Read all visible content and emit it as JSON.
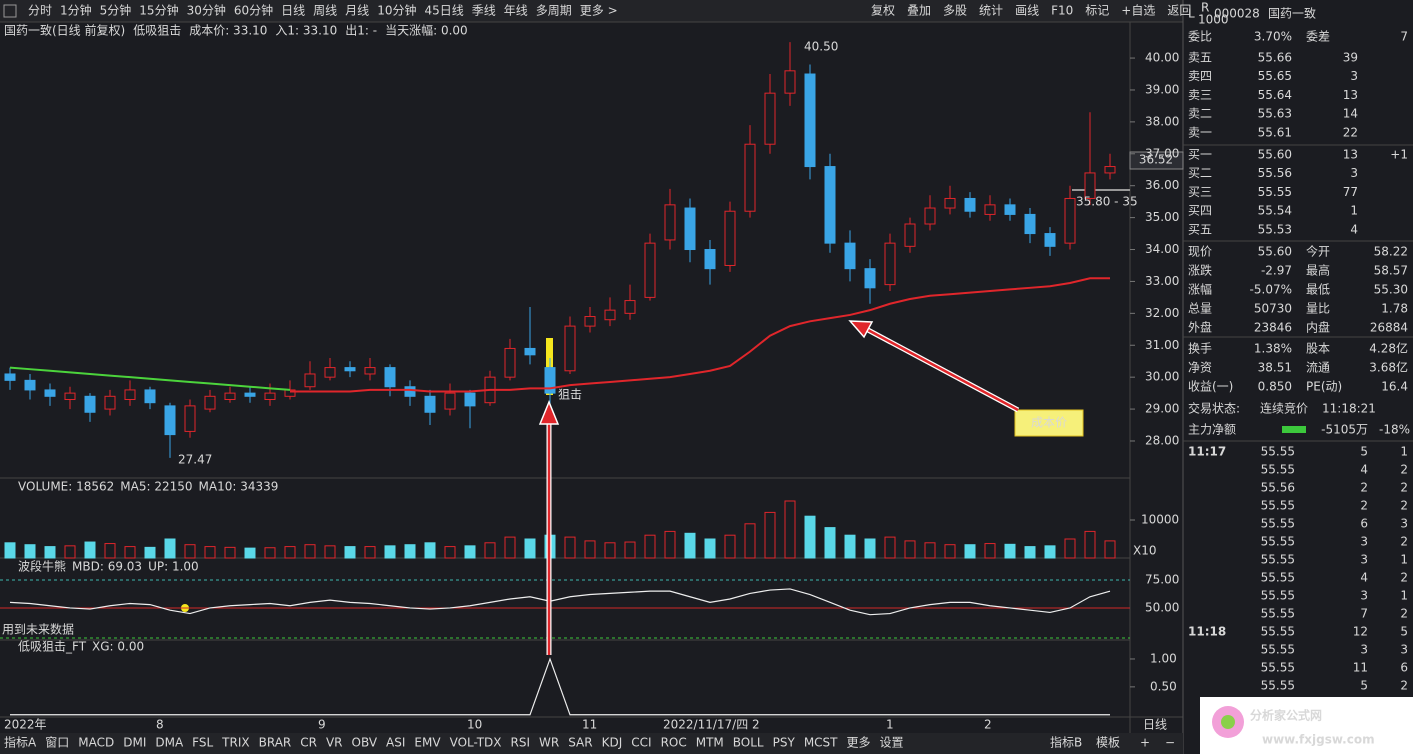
{
  "toolbar": {
    "left": [
      "分时",
      "1分钟",
      "5分钟",
      "15分钟",
      "30分钟",
      "60分钟",
      "日线",
      "周线",
      "月线",
      "10分钟",
      "45日线",
      "季线",
      "年线",
      "多周期",
      "更多 >"
    ],
    "active": "日线",
    "right": [
      "复权",
      "叠加",
      "多股",
      "统计",
      "画线",
      "F10",
      "标记",
      "+自选",
      "返回"
    ]
  },
  "chart_data": {
    "type": "candlestick",
    "title": "国药一致(日线 前复权)",
    "indicator": "低吸狙击",
    "overlay_labels": [
      {
        "text": "成本价: 33.10",
        "color": "#c040c0"
      },
      {
        "text": "入1: 33.10",
        "color": "#e03030"
      },
      {
        "text": "出1: -",
        "color": "#e0d040"
      },
      {
        "text": "当天涨幅: 0.00",
        "color": "#40c040"
      }
    ],
    "up_color": "#e0262b",
    "down_color": "#3aa5e6",
    "cost_color": "#e0262b",
    "trend_color": "#4cd43c",
    "candles": [
      [
        30.1,
        29.9,
        30.3,
        29.6
      ],
      [
        29.9,
        29.6,
        30.1,
        29.3
      ],
      [
        29.6,
        29.4,
        29.8,
        29.1
      ],
      [
        29.3,
        29.5,
        29.7,
        29.0
      ],
      [
        29.4,
        28.9,
        29.5,
        28.6
      ],
      [
        29.0,
        29.4,
        29.6,
        28.8
      ],
      [
        29.3,
        29.6,
        29.9,
        29.1
      ],
      [
        29.6,
        29.2,
        29.7,
        29.0
      ],
      [
        29.1,
        28.2,
        29.2,
        27.47
      ],
      [
        28.3,
        29.1,
        29.3,
        28.1
      ],
      [
        29.0,
        29.4,
        29.6,
        28.9
      ],
      [
        29.3,
        29.5,
        29.7,
        29.2
      ],
      [
        29.5,
        29.4,
        29.7,
        29.2
      ],
      [
        29.3,
        29.5,
        29.8,
        29.1
      ],
      [
        29.4,
        29.6,
        29.9,
        29.3
      ],
      [
        29.7,
        30.1,
        30.5,
        29.6
      ],
      [
        30.0,
        30.3,
        30.6,
        29.9
      ],
      [
        30.3,
        30.2,
        30.5,
        30.0
      ],
      [
        30.1,
        30.3,
        30.6,
        29.9
      ],
      [
        30.3,
        29.7,
        30.4,
        29.4
      ],
      [
        29.7,
        29.4,
        29.9,
        29.1
      ],
      [
        29.4,
        28.9,
        29.6,
        28.5
      ],
      [
        29.0,
        29.5,
        29.8,
        28.8
      ],
      [
        29.5,
        29.1,
        29.6,
        28.4
      ],
      [
        29.2,
        30.0,
        30.2,
        29.1
      ],
      [
        30.0,
        30.9,
        31.2,
        29.9
      ],
      [
        30.9,
        30.7,
        32.2,
        30.4
      ],
      [
        30.3,
        29.5,
        30.6,
        29.0
      ],
      [
        30.2,
        31.6,
        31.9,
        30.1
      ],
      [
        31.6,
        31.9,
        32.2,
        31.4
      ],
      [
        31.8,
        32.1,
        32.5,
        31.6
      ],
      [
        32.0,
        32.4,
        32.9,
        31.8
      ],
      [
        32.5,
        34.2,
        34.5,
        32.4
      ],
      [
        34.3,
        35.4,
        35.9,
        34.0
      ],
      [
        35.3,
        34.0,
        35.6,
        33.6
      ],
      [
        34.0,
        33.4,
        34.3,
        32.9
      ],
      [
        33.5,
        35.2,
        35.5,
        33.3
      ],
      [
        35.2,
        37.3,
        37.9,
        35.0
      ],
      [
        37.3,
        38.9,
        39.5,
        37.0
      ],
      [
        38.9,
        39.6,
        40.5,
        38.5
      ],
      [
        39.5,
        36.6,
        39.8,
        36.2
      ],
      [
        36.6,
        34.2,
        37.0,
        33.9
      ],
      [
        34.2,
        33.4,
        34.6,
        33.0
      ],
      [
        33.4,
        32.8,
        33.7,
        32.3
      ],
      [
        32.9,
        34.2,
        34.5,
        32.7
      ],
      [
        34.1,
        34.8,
        35.0,
        33.9
      ],
      [
        34.8,
        35.3,
        35.7,
        34.6
      ],
      [
        35.3,
        35.6,
        36.0,
        35.1
      ],
      [
        35.6,
        35.2,
        35.8,
        35.0
      ],
      [
        35.1,
        35.4,
        35.7,
        34.9
      ],
      [
        35.4,
        35.1,
        35.6,
        34.9
      ],
      [
        35.1,
        34.5,
        35.3,
        34.2
      ],
      [
        34.5,
        34.1,
        34.7,
        33.8
      ],
      [
        34.2,
        35.6,
        36.0,
        34.0
      ],
      [
        35.6,
        36.4,
        38.3,
        35.4
      ],
      [
        36.4,
        36.6,
        37.0,
        36.2
      ]
    ],
    "cost_line": [
      null,
      null,
      null,
      null,
      null,
      null,
      null,
      null,
      null,
      null,
      null,
      null,
      null,
      null,
      29.55,
      29.55,
      29.55,
      29.55,
      29.6,
      29.6,
      29.6,
      29.55,
      29.55,
      29.55,
      29.6,
      29.6,
      29.65,
      29.65,
      29.75,
      29.8,
      29.85,
      29.9,
      29.95,
      30.0,
      30.1,
      30.2,
      30.35,
      30.8,
      31.3,
      31.6,
      31.75,
      31.85,
      31.95,
      32.1,
      32.3,
      32.45,
      32.55,
      32.6,
      32.65,
      32.7,
      32.75,
      32.8,
      32.85,
      32.95,
      33.1,
      33.1
    ],
    "trend_line": [
      30.3,
      30.25,
      30.2,
      30.15,
      30.1,
      30.05,
      30.0,
      29.95,
      29.9,
      29.85,
      29.8,
      29.75,
      29.7,
      29.65,
      29.6,
      null,
      null,
      null,
      null,
      null,
      null,
      null,
      null,
      null,
      null,
      null,
      null,
      null,
      null,
      null,
      null,
      null,
      null,
      null,
      null,
      null,
      null,
      null,
      null,
      null,
      null,
      null,
      null,
      null,
      null,
      null,
      null,
      null,
      null,
      null,
      null,
      null,
      null,
      null,
      null,
      null
    ],
    "ylim": [
      26.84,
      41.13
    ],
    "yticks": [
      {
        "value": 28,
        "label": "28.00"
      },
      {
        "value": 29,
        "label": "29.00"
      },
      {
        "value": 30,
        "label": "30.00"
      },
      {
        "value": 31,
        "label": "31.00"
      },
      {
        "value": 32,
        "label": "32.00"
      },
      {
        "value": 33,
        "label": "33.00"
      },
      {
        "value": 34,
        "label": "34.00"
      },
      {
        "value": 35,
        "label": "35.00"
      },
      {
        "value": 36,
        "label": "36.00"
      },
      {
        "value": 37,
        "label": "37.00"
      },
      {
        "value": 38,
        "label": "38.00"
      },
      {
        "value": 39,
        "label": "39.00"
      },
      {
        "value": 40,
        "label": "40.00"
      }
    ],
    "annotations": {
      "high": "40.50",
      "low": "27.47",
      "signal": "狙击",
      "cost": "成本价",
      "range": "35.80 - 35",
      "last": "36.52"
    },
    "x_labels": [
      "2022年",
      "8",
      "9",
      "10",
      "11",
      "2022/11/17/四",
      "2",
      "1",
      "2"
    ],
    "period": "日线",
    "volume": {
      "title": "VOLUME: 18562",
      "ma5": "MA5: 22150",
      "ma10": "MA10: 34339",
      "values": [
        4000,
        3500,
        3000,
        3200,
        4200,
        3800,
        3000,
        2800,
        5000,
        3500,
        3000,
        2800,
        2600,
        2700,
        3000,
        3500,
        3200,
        3000,
        3000,
        3200,
        3500,
        4000,
        3000,
        3200,
        4000,
        5500,
        5000,
        6000,
        5500,
        4500,
        4000,
        4200,
        6000,
        7000,
        6500,
        5000,
        6000,
        9000,
        12000,
        15000,
        11000,
        8000,
        6000,
        5000,
        5500,
        4500,
        4000,
        3500,
        3500,
        3800,
        3600,
        3000,
        3200,
        5000,
        7000,
        4500
      ],
      "ylim": [
        0,
        21053
      ],
      "yticks": [
        10000
      ],
      "unit": "X10"
    },
    "mbd": {
      "name": "波段牛熊",
      "value_label": "MBD: 69.03",
      "up_label": "UP: 1.00",
      "note": "用到未来数据",
      "values": [
        55,
        54,
        52,
        50,
        49,
        52,
        54,
        53,
        48,
        45,
        50,
        52,
        53,
        54,
        52,
        55,
        57,
        55,
        54,
        52,
        50,
        49,
        50,
        52,
        55,
        58,
        60,
        56,
        60,
        62,
        63,
        64,
        65,
        65,
        60,
        55,
        58,
        63,
        66,
        67,
        62,
        55,
        48,
        44,
        45,
        50,
        53,
        55,
        55,
        52,
        50,
        48,
        46,
        50,
        60,
        65
      ],
      "ylim": [
        21.4,
        94.6
      ],
      "yticks": [
        {
          "value": 75,
          "label": "75.00"
        },
        {
          "value": 50,
          "label": "50.00"
        }
      ]
    },
    "xg": {
      "name": "低吸狙击_FT",
      "value_label": "XG: 0.00",
      "values": [
        0,
        0,
        0,
        0,
        0,
        0,
        0,
        0,
        0,
        0,
        0,
        0,
        0,
        0,
        0,
        0,
        0,
        0,
        0,
        0,
        0,
        0,
        0,
        0,
        0,
        0,
        0,
        1,
        0,
        0,
        0,
        0,
        0,
        0,
        0,
        0,
        0,
        0,
        0,
        0,
        0,
        0,
        0,
        0,
        0,
        0,
        0,
        0,
        0,
        0,
        0,
        0,
        0,
        0,
        0,
        0
      ],
      "ylim": [
        -0.04,
        1.34
      ],
      "yticks": [
        {
          "value": 1,
          "label": "1.00"
        },
        {
          "value": 0.5,
          "label": "0.50"
        }
      ]
    }
  },
  "right_panel": {
    "header": {
      "badge": "L",
      "badge_sup": "R",
      "badge_sub": "1000",
      "code": "000028",
      "name": "国药一致"
    },
    "ratio": [
      "委比",
      "3.70%",
      "委差",
      "7"
    ],
    "sell": [
      [
        "卖五",
        "55.66",
        "39"
      ],
      [
        "卖四",
        "55.65",
        "3"
      ],
      [
        "卖三",
        "55.64",
        "13"
      ],
      [
        "卖二",
        "55.63",
        "14"
      ],
      [
        "卖一",
        "55.61",
        "22"
      ]
    ],
    "buy": [
      [
        "买一",
        "55.60",
        "13",
        "+1"
      ],
      [
        "买二",
        "55.56",
        "3"
      ],
      [
        "买三",
        "55.55",
        "77"
      ],
      [
        "买四",
        "55.54",
        "1"
      ],
      [
        "买五",
        "55.53",
        "4"
      ]
    ],
    "stats": [
      [
        "现价",
        "55.60",
        "今开",
        "58.22"
      ],
      [
        "涨跌",
        "-2.97",
        "最高",
        "58.57"
      ],
      [
        "涨幅",
        "-5.07%",
        "最低",
        "55.30"
      ],
      [
        "总量",
        "50730",
        "量比",
        "1.78"
      ],
      [
        "外盘",
        "23846",
        "内盘",
        "26884"
      ],
      [
        "换手",
        "1.38%",
        "股本",
        "4.28亿"
      ],
      [
        "净资",
        "38.51",
        "流通",
        "3.68亿"
      ],
      [
        "收益(一)",
        "0.850",
        "PE(动)",
        "16.4"
      ]
    ],
    "stat_colors": [
      [
        "#3cc83c",
        "#3cc83c"
      ],
      [
        "#3cc83c",
        "#dddddd"
      ],
      [
        "#3cc83c",
        "#3cc83c"
      ],
      [
        "#dddddd",
        "#ff4040"
      ],
      [
        "#ff4040",
        "#3cc83c"
      ],
      [
        "#dddddd",
        "#dddddd"
      ],
      [
        "#dddddd",
        "#dddddd"
      ],
      [
        "#dddddd",
        "#dddddd"
      ]
    ],
    "state": [
      "交易状态:",
      "连续竞价",
      "11:18:21"
    ],
    "main_flow": [
      "主力净额",
      "-5105万",
      "-18%"
    ],
    "ticks": [
      [
        "11:17",
        "55.55",
        "5",
        "1"
      ],
      [
        null,
        "55.55",
        "4",
        "2"
      ],
      [
        null,
        "55.56",
        "2",
        "2"
      ],
      [
        null,
        "55.55",
        "2",
        "2"
      ],
      [
        null,
        "55.55",
        "6",
        "3"
      ],
      [
        null,
        "55.55",
        "3",
        "2"
      ],
      [
        null,
        "55.55",
        "3",
        "1"
      ],
      [
        null,
        "55.55",
        "4",
        "2"
      ],
      [
        null,
        "55.55",
        "3",
        "1"
      ],
      [
        null,
        "55.55",
        "7",
        "2"
      ],
      [
        "11:18",
        "55.55",
        "12",
        "5"
      ],
      [
        null,
        "55.55",
        "3",
        "3"
      ],
      [
        null,
        "55.55",
        "11",
        "6"
      ],
      [
        null,
        "55.55",
        "5",
        "2"
      ]
    ]
  },
  "bottom_tabs": {
    "left": [
      "指标A",
      "窗口",
      "MACD",
      "DMI",
      "DMA",
      "FSL",
      "TRIX",
      "BRAR",
      "CR",
      "VR",
      "OBV",
      "ASI",
      "EMV",
      "VOL-TDX",
      "RSI",
      "WR",
      "SAR",
      "KDJ",
      "CCI",
      "ROC",
      "MTM",
      "BOLL",
      "PSY",
      "MCST",
      "更多",
      "设置"
    ],
    "active": "设置",
    "right": [
      "指标B",
      "模板",
      "+",
      "−"
    ]
  },
  "watermark": {
    "name": "分析家公式网",
    "url": "www.fxjgsw.com"
  }
}
